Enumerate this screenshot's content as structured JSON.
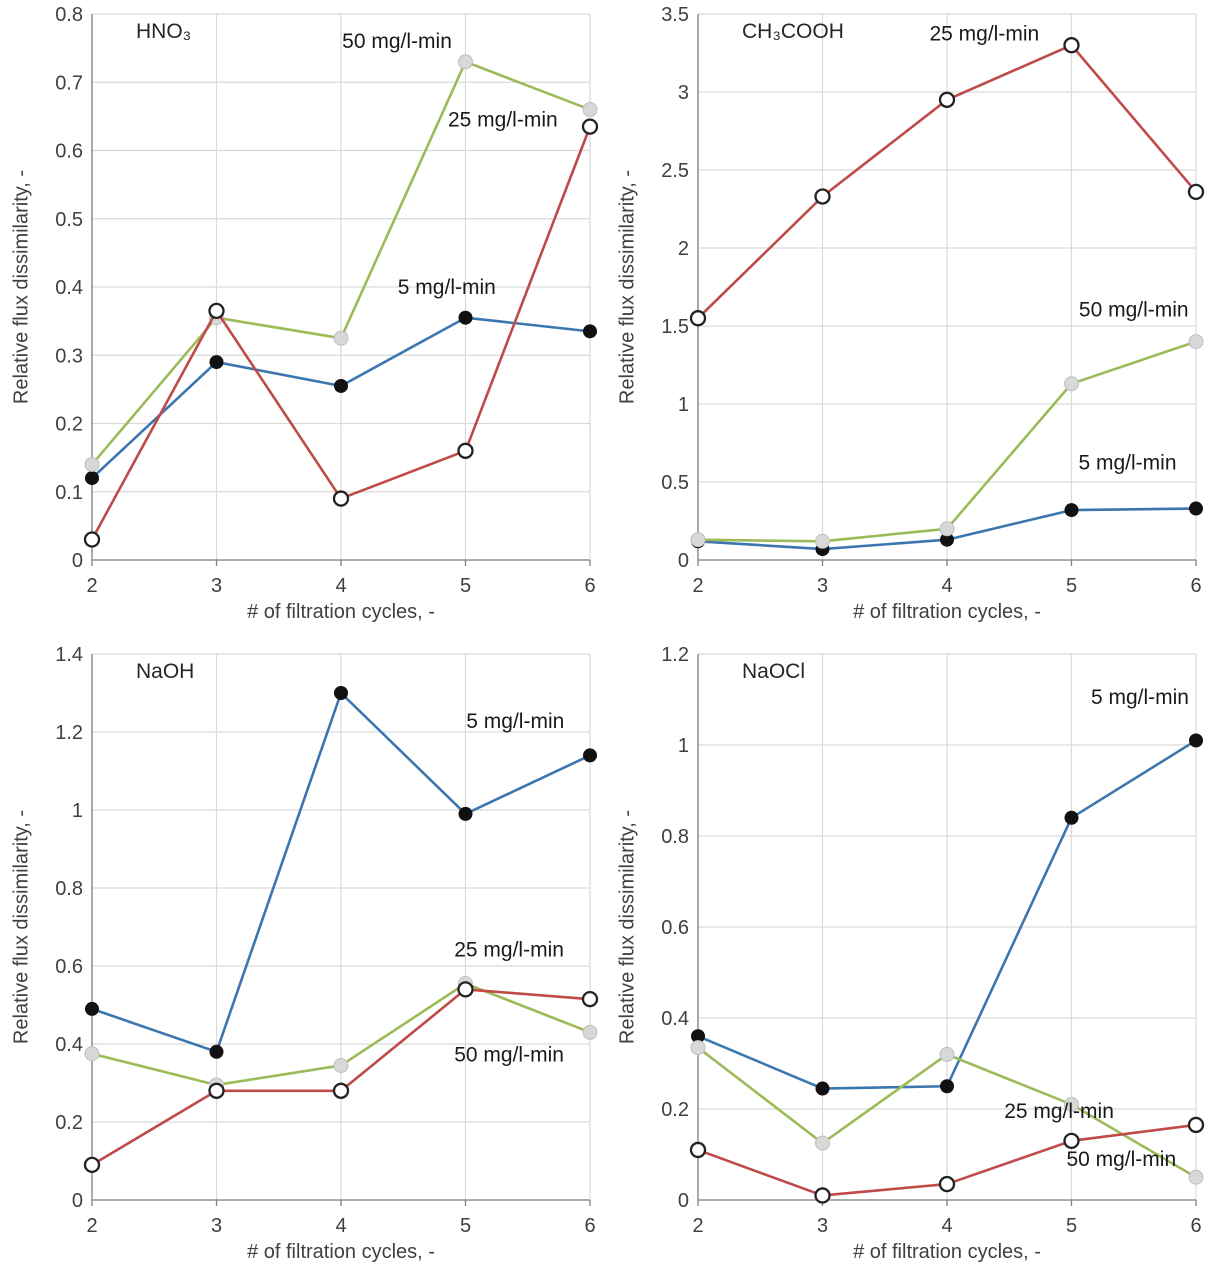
{
  "figure": {
    "background": "#ffffff",
    "grid_color": "#D9D9D9",
    "axis_color": "#808080",
    "tick_text_color": "#404040",
    "annotation_color": "#1A1A1A"
  },
  "chart_data": [
    {
      "type": "line",
      "title": "HNO₃",
      "xlabel": "# of filtration cycles, -",
      "ylabel": "Relative flux dissimilarity, -",
      "x": [
        2,
        3,
        4,
        5,
        6
      ],
      "xlim": [
        2,
        6
      ],
      "ylim": [
        0,
        0.8
      ],
      "ytick_step": 0.1,
      "grid": true,
      "series": [
        {
          "name": "5 mg/l-min",
          "color": "#3B76AF",
          "marker": "filled-black",
          "values": [
            0.12,
            0.29,
            0.255,
            0.355,
            0.335
          ]
        },
        {
          "name": "50 mg/l-min",
          "color": "#9BBB59",
          "marker": "filled-gray",
          "values": [
            0.14,
            0.355,
            0.325,
            0.73,
            0.66
          ]
        },
        {
          "name": "25 mg/l-min",
          "color": "#BE4B48",
          "marker": "open",
          "values": [
            0.03,
            0.365,
            0.09,
            0.16,
            0.635
          ]
        }
      ],
      "annotations": [
        {
          "text": "50 mg/l-min",
          "x": 4.45,
          "y": 0.75
        },
        {
          "text": "25 mg/l-min",
          "x": 5.3,
          "y": 0.635
        },
        {
          "text": "5 mg/l-min",
          "x": 4.85,
          "y": 0.39
        }
      ]
    },
    {
      "type": "line",
      "title": "CH₃COOH",
      "xlabel": "# of filtration cycles, -",
      "ylabel": "Relative flux dissimilarity, -",
      "x": [
        2,
        3,
        4,
        5,
        6
      ],
      "xlim": [
        2,
        6
      ],
      "ylim": [
        0,
        3.5
      ],
      "ytick_step": 0.5,
      "grid": true,
      "series": [
        {
          "name": "5 mg/l-min",
          "color": "#3B76AF",
          "marker": "filled-black",
          "values": [
            0.12,
            0.07,
            0.13,
            0.32,
            0.33
          ]
        },
        {
          "name": "50 mg/l-min",
          "color": "#9BBB59",
          "marker": "filled-gray",
          "values": [
            0.13,
            0.12,
            0.2,
            1.13,
            1.4
          ]
        },
        {
          "name": "25 mg/l-min",
          "color": "#BE4B48",
          "marker": "open",
          "values": [
            1.55,
            2.33,
            2.95,
            3.3,
            2.36
          ]
        }
      ],
      "annotations": [
        {
          "text": "25 mg/l-min",
          "x": 4.3,
          "y": 3.33
        },
        {
          "text": "50 mg/l-min",
          "x": 5.5,
          "y": 1.56
        },
        {
          "text": "5 mg/l-min",
          "x": 5.45,
          "y": 0.58
        }
      ]
    },
    {
      "type": "line",
      "title": "NaOH",
      "xlabel": "# of filtration cycles, -",
      "ylabel": "Relative flux dissimilarity, -",
      "x": [
        2,
        3,
        4,
        5,
        6
      ],
      "xlim": [
        2,
        6
      ],
      "ylim": [
        0,
        1.4
      ],
      "ytick_step": 0.2,
      "grid": true,
      "series": [
        {
          "name": "5 mg/l-min",
          "color": "#3B76AF",
          "marker": "filled-black",
          "values": [
            0.49,
            0.38,
            1.3,
            0.99,
            1.14
          ]
        },
        {
          "name": "50 mg/l-min",
          "color": "#9BBB59",
          "marker": "filled-gray",
          "values": [
            0.375,
            0.295,
            0.345,
            0.555,
            0.43
          ]
        },
        {
          "name": "25 mg/l-min",
          "color": "#BE4B48",
          "marker": "open",
          "values": [
            0.09,
            0.28,
            0.28,
            0.54,
            0.515
          ]
        }
      ],
      "annotations": [
        {
          "text": "5 mg/l-min",
          "x": 5.4,
          "y": 1.21
        },
        {
          "text": "25 mg/l-min",
          "x": 5.35,
          "y": 0.625
        },
        {
          "text": "50 mg/l-min",
          "x": 5.35,
          "y": 0.355
        }
      ]
    },
    {
      "type": "line",
      "title": "NaOCl",
      "xlabel": "# of filtration cycles, -",
      "ylabel": "Relative flux dissimilarity, -",
      "x": [
        2,
        3,
        4,
        5,
        6
      ],
      "xlim": [
        2,
        6
      ],
      "ylim": [
        0,
        1.2
      ],
      "ytick_step": 0.2,
      "grid": true,
      "series": [
        {
          "name": "5 mg/l-min",
          "color": "#3B76AF",
          "marker": "filled-black",
          "values": [
            0.36,
            0.245,
            0.25,
            0.84,
            1.01
          ]
        },
        {
          "name": "50 mg/l-min",
          "color": "#9BBB59",
          "marker": "filled-gray",
          "values": [
            0.335,
            0.125,
            0.32,
            0.21,
            0.05
          ]
        },
        {
          "name": "25 mg/l-min",
          "color": "#BE4B48",
          "marker": "open",
          "values": [
            0.11,
            0.01,
            0.035,
            0.13,
            0.165
          ]
        }
      ],
      "annotations": [
        {
          "text": "5 mg/l-min",
          "x": 5.55,
          "y": 1.09
        },
        {
          "text": "25 mg/l-min",
          "x": 4.9,
          "y": 0.18
        },
        {
          "text": "50 mg/l-min",
          "x": 5.4,
          "y": 0.075
        }
      ]
    }
  ]
}
